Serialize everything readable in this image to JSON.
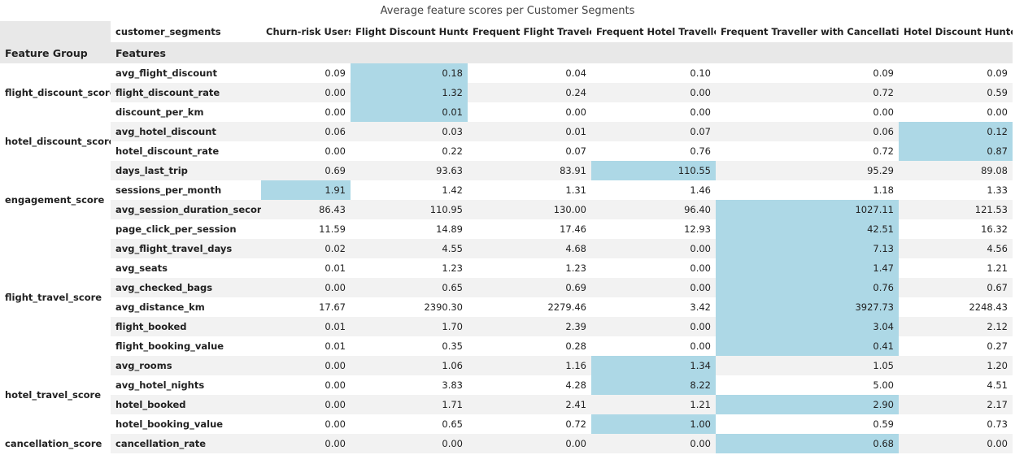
{
  "chart_data": {
    "type": "table",
    "title": "Average feature scores per Customer Segments",
    "columns_index_name": "customer_segments",
    "row_index_names": [
      "Feature Group",
      "Features"
    ],
    "columns": [
      "Churn-risk Users",
      "Flight Discount Hunter",
      "Frequent Flight Traveler",
      "Frequent Hotel Traveller",
      "Frequent Traveller with Cancellations",
      "Hotel Discount Hunter"
    ],
    "highlight_color": "#add8e6",
    "groups": [
      {
        "name": "flight_discount_score",
        "rows": [
          {
            "feature": "avg_flight_discount",
            "values": [
              "0.09",
              "0.18",
              "0.04",
              "0.10",
              "0.09",
              "0.09"
            ],
            "highlight": [
              1
            ]
          },
          {
            "feature": "flight_discount_rate",
            "values": [
              "0.00",
              "1.32",
              "0.24",
              "0.00",
              "0.72",
              "0.59"
            ],
            "highlight": [
              1
            ]
          },
          {
            "feature": "discount_per_km",
            "values": [
              "0.00",
              "0.01",
              "0.00",
              "0.00",
              "0.00",
              "0.00"
            ],
            "highlight": [
              1
            ]
          }
        ]
      },
      {
        "name": "hotel_discount_score",
        "rows": [
          {
            "feature": "avg_hotel_discount",
            "values": [
              "0.06",
              "0.03",
              "0.01",
              "0.07",
              "0.06",
              "0.12"
            ],
            "highlight": [
              5
            ]
          },
          {
            "feature": "hotel_discount_rate",
            "values": [
              "0.00",
              "0.22",
              "0.07",
              "0.76",
              "0.72",
              "0.87"
            ],
            "highlight": [
              5
            ]
          }
        ]
      },
      {
        "name": "engagement_score",
        "rows": [
          {
            "feature": "days_last_trip",
            "values": [
              "0.69",
              "93.63",
              "83.91",
              "110.55",
              "95.29",
              "89.08"
            ],
            "highlight": [
              3
            ]
          },
          {
            "feature": "sessions_per_month",
            "values": [
              "1.91",
              "1.42",
              "1.31",
              "1.46",
              "1.18",
              "1.33"
            ],
            "highlight": [
              0
            ]
          },
          {
            "feature": "avg_session_duration_seconds",
            "values": [
              "86.43",
              "110.95",
              "130.00",
              "96.40",
              "1027.11",
              "121.53"
            ],
            "highlight": [
              4
            ]
          },
          {
            "feature": "page_click_per_session",
            "values": [
              "11.59",
              "14.89",
              "17.46",
              "12.93",
              "42.51",
              "16.32"
            ],
            "highlight": [
              4
            ]
          }
        ]
      },
      {
        "name": "flight_travel_score",
        "rows": [
          {
            "feature": "avg_flight_travel_days",
            "values": [
              "0.02",
              "4.55",
              "4.68",
              "0.00",
              "7.13",
              "4.56"
            ],
            "highlight": [
              4
            ]
          },
          {
            "feature": "avg_seats",
            "values": [
              "0.01",
              "1.23",
              "1.23",
              "0.00",
              "1.47",
              "1.21"
            ],
            "highlight": [
              4
            ]
          },
          {
            "feature": "avg_checked_bags",
            "values": [
              "0.00",
              "0.65",
              "0.69",
              "0.00",
              "0.76",
              "0.67"
            ],
            "highlight": [
              4
            ]
          },
          {
            "feature": "avg_distance_km",
            "values": [
              "17.67",
              "2390.30",
              "2279.46",
              "3.42",
              "3927.73",
              "2248.43"
            ],
            "highlight": [
              4
            ]
          },
          {
            "feature": "flight_booked",
            "values": [
              "0.01",
              "1.70",
              "2.39",
              "0.00",
              "3.04",
              "2.12"
            ],
            "highlight": [
              4
            ]
          },
          {
            "feature": "flight_booking_value",
            "values": [
              "0.01",
              "0.35",
              "0.28",
              "0.00",
              "0.41",
              "0.27"
            ],
            "highlight": [
              4
            ]
          }
        ]
      },
      {
        "name": "hotel_travel_score",
        "rows": [
          {
            "feature": "avg_rooms",
            "values": [
              "0.00",
              "1.06",
              "1.16",
              "1.34",
              "1.05",
              "1.20"
            ],
            "highlight": [
              3
            ]
          },
          {
            "feature": "avg_hotel_nights",
            "values": [
              "0.00",
              "3.83",
              "4.28",
              "8.22",
              "5.00",
              "4.51"
            ],
            "highlight": [
              3
            ]
          },
          {
            "feature": "hotel_booked",
            "values": [
              "0.00",
              "1.71",
              "2.41",
              "1.21",
              "2.90",
              "2.17"
            ],
            "highlight": [
              4
            ]
          },
          {
            "feature": "hotel_booking_value",
            "values": [
              "0.00",
              "0.65",
              "0.72",
              "1.00",
              "0.59",
              "0.73"
            ],
            "highlight": [
              3
            ]
          }
        ]
      },
      {
        "name": "cancellation_score",
        "rows": [
          {
            "feature": "cancellation_rate",
            "values": [
              "0.00",
              "0.00",
              "0.00",
              "0.00",
              "0.68",
              "0.00"
            ],
            "highlight": [
              4
            ]
          }
        ]
      }
    ]
  }
}
